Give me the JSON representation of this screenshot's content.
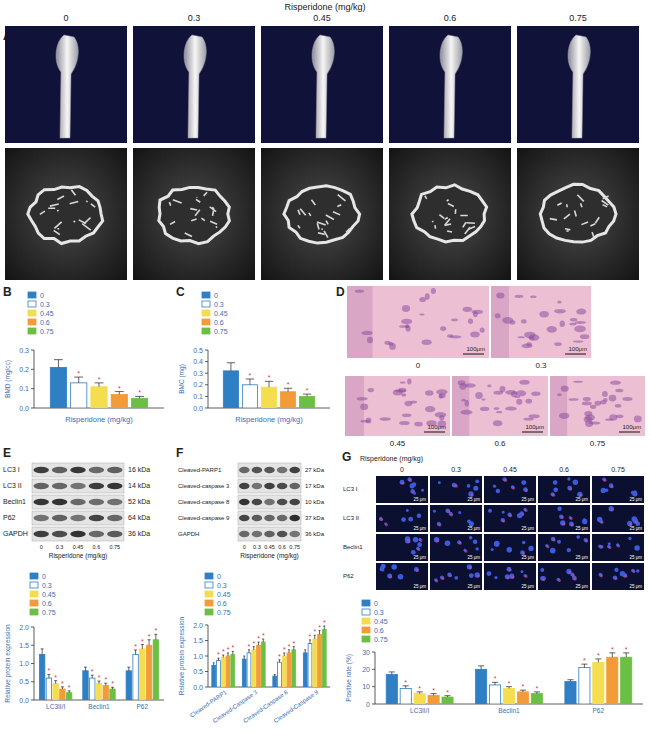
{
  "chart_data": [
    {
      "label": "B",
      "type": "bar",
      "ylabel": "BMD (mg/cc)",
      "xlabel": "Risperidone (mg/kg)",
      "categories": [
        null
      ],
      "ylim": [
        0,
        0.3
      ],
      "yticks": [
        {
          "value": 0,
          "label": "0.0"
        },
        0.1,
        0.2,
        0.3
      ],
      "legend": "top-left",
      "series": [
        {
          "name": "0",
          "color": "#2f7fc4",
          "values": [
            0.21
          ],
          "errors": [
            0.04
          ]
        },
        {
          "name": "0.3",
          "color": "#ffffff",
          "values": [
            0.13
          ],
          "errors": [
            0.03
          ],
          "significance": [
            "*"
          ]
        },
        {
          "name": "0.45",
          "color": "#f4dd4e",
          "values": [
            0.11
          ],
          "errors": [
            0.02
          ],
          "significance": [
            "*"
          ]
        },
        {
          "name": "0.6",
          "color": "#f29b38",
          "values": [
            0.07
          ],
          "errors": [
            0.015
          ],
          "significance": [
            "*"
          ]
        },
        {
          "name": "0.75",
          "color": "#6cbf45",
          "values": [
            0.05
          ],
          "errors": [
            0.01
          ],
          "significance": [
            "*"
          ]
        }
      ]
    },
    {
      "label": "C",
      "type": "bar",
      "ylabel": "BMC (mg)",
      "xlabel": "Risperidone (mg/kg)",
      "categories": [
        null
      ],
      "ylim": [
        0,
        0.5
      ],
      "yticks": [
        {
          "value": 0,
          "label": "0.0"
        },
        0.1,
        0.2,
        0.3,
        0.4,
        0.5
      ],
      "legend": "top-left",
      "series": [
        {
          "name": "0",
          "color": "#2f7fc4",
          "values": [
            0.32
          ],
          "errors": [
            0.07
          ]
        },
        {
          "name": "0.3",
          "color": "#ffffff",
          "values": [
            0.2
          ],
          "errors": [
            0.05
          ],
          "significance": [
            "*"
          ]
        },
        {
          "name": "0.45",
          "color": "#f4dd4e",
          "values": [
            0.18
          ],
          "errors": [
            0.05
          ],
          "significance": [
            "*"
          ]
        },
        {
          "name": "0.6",
          "color": "#f29b38",
          "values": [
            0.14
          ],
          "errors": [
            0.03
          ],
          "significance": [
            "*"
          ]
        },
        {
          "name": "0.75",
          "color": "#6cbf45",
          "values": [
            0.1
          ],
          "errors": [
            0.02
          ],
          "significance": [
            "*"
          ]
        }
      ]
    },
    {
      "type": "bar",
      "ylabel": "Relative protein expression",
      "categories": [
        "LC3II/I",
        "Beclin1",
        "P62"
      ],
      "ylim": [
        0,
        2
      ],
      "yticks": [
        {
          "value": 0,
          "label": "0.0"
        },
        0.5,
        {
          "value": 1,
          "label": "1.0"
        },
        1.5,
        {
          "value": 2,
          "label": "2.0"
        }
      ],
      "legend": "top-left",
      "series": [
        {
          "name": "0",
          "color": "#2f7fc4",
          "values": [
            1.25,
            0.8,
            0.8
          ],
          "errors": [
            0.15,
            0.1,
            0.1
          ]
        },
        {
          "name": "0.3",
          "color": "#ffffff",
          "values": [
            0.6,
            0.6,
            1.25
          ],
          "errors": [
            0.1,
            0.08,
            0.12
          ],
          "significance": [
            "*",
            "*",
            "*"
          ]
        },
        {
          "name": "0.45",
          "color": "#f4dd4e",
          "values": [
            0.45,
            0.45,
            1.4
          ],
          "errors": [
            0.08,
            0.07,
            0.12
          ],
          "significance": [
            "*",
            "*",
            "*"
          ]
        },
        {
          "name": "0.6",
          "color": "#f29b38",
          "values": [
            0.3,
            0.4,
            1.5
          ],
          "errors": [
            0.06,
            0.06,
            0.15
          ],
          "significance": [
            "*",
            "*",
            "*"
          ]
        },
        {
          "name": "0.75",
          "color": "#6cbf45",
          "values": [
            0.2,
            0.3,
            1.65
          ],
          "errors": [
            0.05,
            0.05,
            0.15
          ],
          "significance": [
            "*",
            "*",
            "*"
          ]
        }
      ]
    },
    {
      "type": "bar",
      "ylabel": "Relative protein expression",
      "categories": [
        "Cleaved-PARP1",
        "Cleaved-Caspase 3",
        "Cleaved-Caspase 8",
        "Cleaved-Caspase 9"
      ],
      "ylim": [
        0,
        2
      ],
      "yticks": [
        {
          "value": 0,
          "label": "0.0"
        },
        0.5,
        {
          "value": 1,
          "label": "1.0"
        },
        1.5,
        {
          "value": 2,
          "label": "2.0"
        }
      ],
      "legend": "top-left",
      "series": [
        {
          "name": "0",
          "color": "#2f7fc4",
          "values": [
            0.7,
            0.9,
            0.35,
            1.1
          ],
          "errors": [
            0.08,
            0.1,
            0.05,
            0.1
          ]
        },
        {
          "name": "0.3",
          "color": "#ffffff",
          "values": [
            0.85,
            1.1,
            0.8,
            1.4
          ],
          "errors": [
            0.08,
            0.1,
            0.08,
            0.12
          ],
          "significance": [
            "*",
            "*",
            "*",
            "*"
          ]
        },
        {
          "name": "0.45",
          "color": "#f4dd4e",
          "values": [
            0.95,
            1.2,
            1.0,
            1.55
          ],
          "errors": [
            0.08,
            0.1,
            0.1,
            0.12
          ],
          "significance": [
            "*",
            "*",
            "*",
            "*"
          ]
        },
        {
          "name": "0.6",
          "color": "#f29b38",
          "values": [
            1.0,
            1.35,
            1.1,
            1.7
          ],
          "errors": [
            0.1,
            0.1,
            0.1,
            0.12
          ],
          "significance": [
            "*",
            "*",
            "*",
            "*"
          ]
        },
        {
          "name": "0.75",
          "color": "#6cbf45",
          "values": [
            1.05,
            1.45,
            1.2,
            1.85
          ],
          "errors": [
            0.1,
            0.1,
            0.1,
            0.12
          ],
          "significance": [
            "*",
            "*",
            "*",
            "*"
          ]
        }
      ]
    },
    {
      "type": "bar",
      "ylabel": "Positive rate (%)",
      "categories": [
        "LC3II/I",
        "Beclin1",
        "P62"
      ],
      "ylim": [
        0,
        30
      ],
      "yticks": [
        0,
        10,
        20,
        30
      ],
      "legend": "top-left",
      "series": [
        {
          "name": "0",
          "color": "#2f7fc4",
          "values": [
            17,
            20,
            13
          ],
          "errors": [
            1.5,
            2,
            1
          ]
        },
        {
          "name": "0.3",
          "color": "#ffffff",
          "values": [
            9,
            11,
            21
          ],
          "errors": [
            1.5,
            1.5,
            2
          ],
          "significance": [
            "*",
            "*",
            "*"
          ]
        },
        {
          "name": "0.45",
          "color": "#f4dd4e",
          "values": [
            6,
            9,
            24
          ],
          "errors": [
            1,
            1,
            2
          ],
          "significance": [
            "*",
            "*",
            "*"
          ]
        },
        {
          "name": "0.6",
          "color": "#f29b38",
          "values": [
            5,
            7,
            27
          ],
          "errors": [
            1,
            1,
            2.5
          ],
          "significance": [
            "*",
            "*",
            "*"
          ]
        },
        {
          "name": "0.75",
          "color": "#6cbf45",
          "values": [
            4,
            6,
            27
          ],
          "errors": [
            0.8,
            1,
            2.5
          ],
          "significance": [
            "*",
            "*",
            "*"
          ]
        }
      ]
    }
  ],
  "figure": {
    "panel_a": {
      "label": "A",
      "title": "Risperidone (mg/kg)",
      "doses": [
        "0",
        "0.3",
        "0.45",
        "0.6",
        "0.75"
      ]
    },
    "panel_d": {
      "label": "D",
      "doses": [
        "0",
        "0.3",
        "0.45",
        "0.6",
        "0.75"
      ],
      "scale_bar": "100μm"
    },
    "panel_e": {
      "label": "E",
      "rows": [
        {
          "name": "LC3 I",
          "size": "16 kDa"
        },
        {
          "name": "LC3 II",
          "size": "14 kDa"
        },
        {
          "name": "Beclin1",
          "size": "52 kDa"
        },
        {
          "name": "P62",
          "size": "64 kDa"
        },
        {
          "name": "GAPDH",
          "size": "36 kDa"
        }
      ],
      "doses": [
        "0",
        "0.3",
        "0.45",
        "0.6",
        "0.75"
      ],
      "xlabel": "Risperidone (mg/kg)"
    },
    "panel_f": {
      "label": "F",
      "rows": [
        {
          "name": "Cleaved-PARP1",
          "size": "27 kDa"
        },
        {
          "name": "Cleaved-caspase 3",
          "size": "17 kDa"
        },
        {
          "name": "Cleaved-caspase 8",
          "size": "10 kDa"
        },
        {
          "name": "Cleaved-caspase 9",
          "size": "37 kDa"
        },
        {
          "name": "GAPDH",
          "size": "36 kDa"
        }
      ],
      "doses": [
        "0",
        "0.3",
        "0.45",
        "0.6",
        "0.75"
      ],
      "xlabel": "Risperidone (mg/kg)"
    },
    "panel_g": {
      "label": "G",
      "title": "Risperidone (mg/kg)",
      "doses": [
        "0",
        "0.3",
        "0.45",
        "0.6",
        "0.75"
      ],
      "rows": [
        "LC3 I",
        "LC3 II",
        "Beclin1",
        "P62"
      ],
      "scale_bar": "25 μm"
    }
  }
}
